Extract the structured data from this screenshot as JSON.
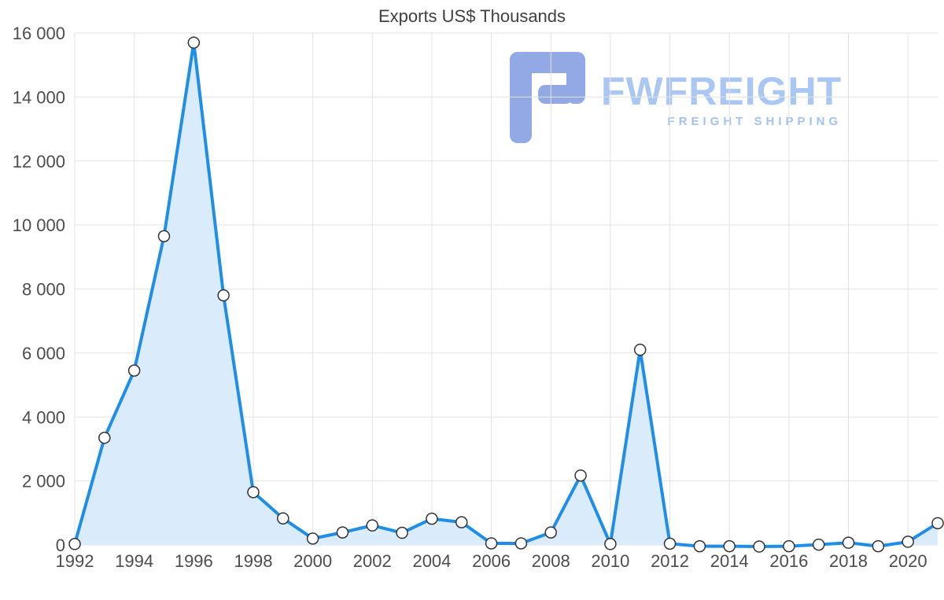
{
  "title": "Exports US$ Thousands",
  "watermark": {
    "brand": "FWFREIGHT",
    "tagline": "FREIGHT SHIPPING",
    "icon_color": "#93a9e6",
    "brand_color": "#aac7f3"
  },
  "chart_data": {
    "type": "area",
    "title": "Exports US$ Thousands",
    "series_name": "Exports US$ Thousands",
    "x": [
      1992,
      1993,
      1994,
      1995,
      1996,
      1997,
      1998,
      1999,
      2000,
      2001,
      2002,
      2003,
      2004,
      2005,
      2006,
      2007,
      2008,
      2009,
      2010,
      2011,
      2012,
      2013,
      2014,
      2015,
      2016,
      2017,
      2018,
      2019,
      2020,
      2021
    ],
    "values": [
      30,
      3350,
      5450,
      9650,
      15700,
      7800,
      1650,
      830,
      200,
      390,
      610,
      380,
      820,
      710,
      50,
      50,
      390,
      2170,
      30,
      6100,
      40,
      -40,
      -40,
      -50,
      -40,
      10,
      70,
      -40,
      100,
      680
    ],
    "ylim": [
      0,
      16000
    ],
    "ytick_values": [
      0,
      2000,
      4000,
      6000,
      8000,
      10000,
      12000,
      14000,
      16000
    ],
    "ytick_labels": [
      "0",
      "2 000",
      "4 000",
      "6 000",
      "8 000",
      "10 000",
      "12 000",
      "14 000",
      "16 000"
    ],
    "xtick_values": [
      1992,
      1994,
      1996,
      1998,
      2000,
      2002,
      2004,
      2006,
      2008,
      2010,
      2012,
      2014,
      2016,
      2018,
      2020
    ],
    "xtick_labels": [
      "1992",
      "1994",
      "1996",
      "1998",
      "2000",
      "2002",
      "2004",
      "2006",
      "2008",
      "2010",
      "2012",
      "2014",
      "2016",
      "2018",
      "2020"
    ],
    "grid": true,
    "legend": "none",
    "grid_color": "#e3e3e3",
    "axis_label_color": "#4d4d4d",
    "line_color": "#1f8ee9",
    "fill_color": "#daecfb",
    "marker_fill": "#ffffff",
    "marker_stroke": "#333333"
  }
}
